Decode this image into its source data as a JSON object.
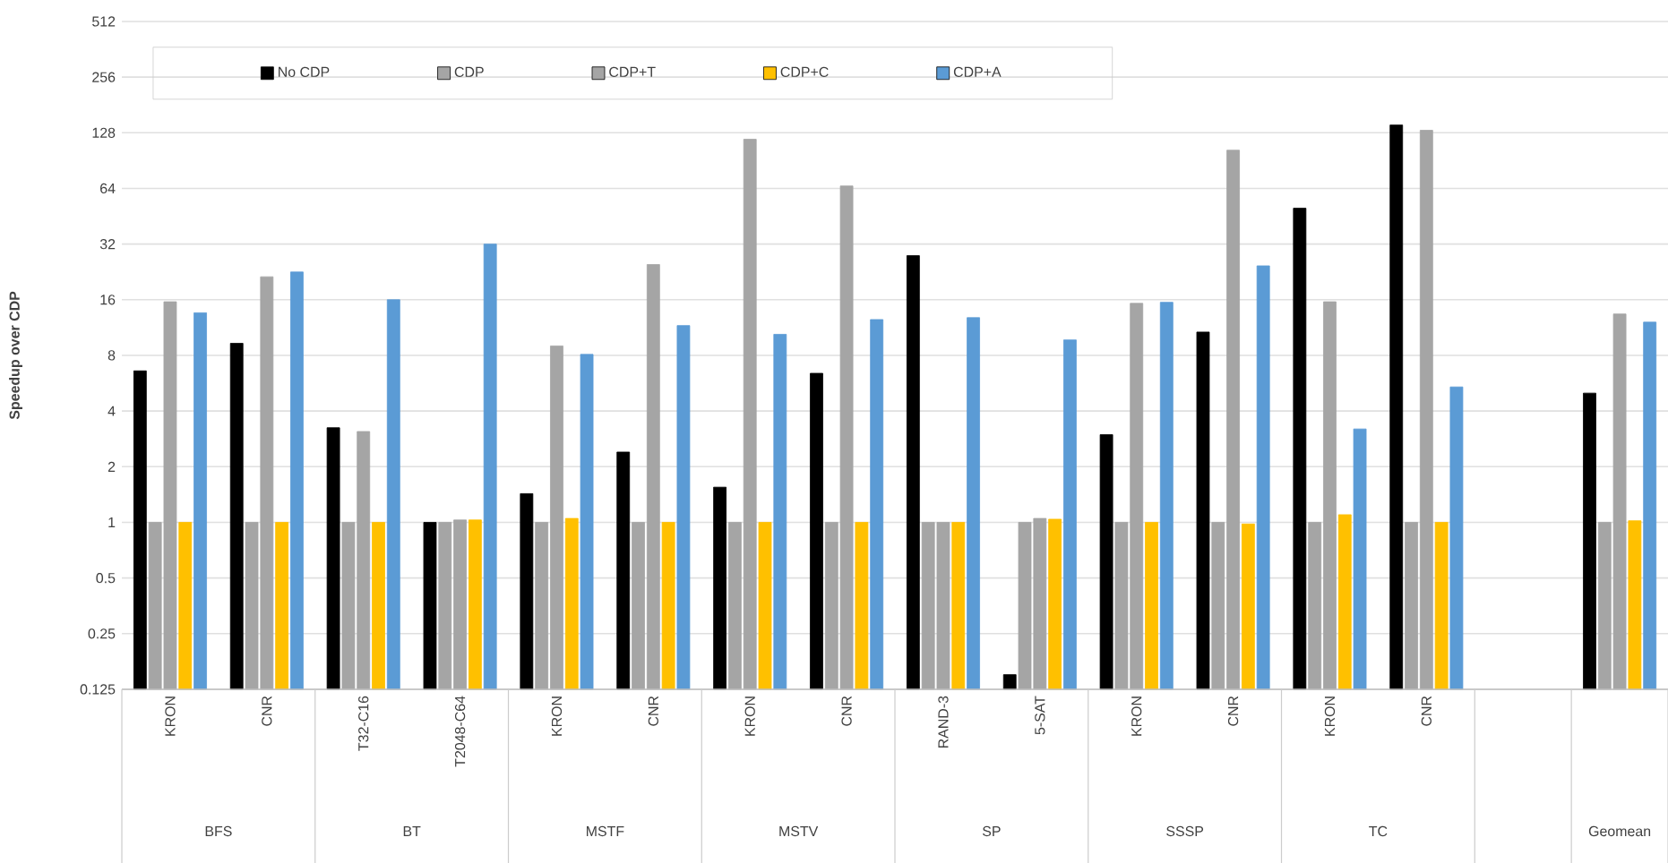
{
  "chart_data": {
    "type": "bar",
    "ylabel": "Speedup over CDP",
    "categories": [
      "KRON",
      "CNR",
      "T32-C16",
      "T2048-C64",
      "KRON",
      "CNR",
      "KRON",
      "CNR",
      "RAND-3",
      "5-SAT",
      "KRON",
      "CNR",
      "KRON",
      "CNR",
      null,
      null
    ],
    "series": [
      {
        "name": "No CDP",
        "color": "#000000",
        "values": [
          6.6,
          9.3,
          3.25,
          1.0,
          1.43,
          2.4,
          1.55,
          6.4,
          27.7,
          0.15,
          2.98,
          10.7,
          50,
          141,
          null,
          5.0
        ]
      },
      {
        "name": "CDP",
        "color": "#a5a5a5",
        "values": [
          1,
          1,
          1,
          1,
          1,
          1,
          1,
          1,
          1,
          1,
          1,
          1,
          1,
          1,
          null,
          1
        ]
      },
      {
        "name": "CDP+T",
        "color": "#a5a5a5",
        "values": [
          15.6,
          21.3,
          3.1,
          1.03,
          9.0,
          24.8,
          118,
          66,
          1,
          1.05,
          15.3,
          103,
          15.6,
          132,
          null,
          13.4
        ]
      },
      {
        "name": "CDP+C",
        "color": "#ffc000",
        "values": [
          1,
          1,
          1,
          1.03,
          1.05,
          1,
          1,
          1,
          1,
          1.04,
          1,
          0.98,
          1.1,
          1,
          null,
          1.02
        ]
      },
      {
        "name": "CDP+A",
        "color": "#5b9bd5",
        "values": [
          13.6,
          22.6,
          16,
          32,
          8.1,
          11.6,
          10.4,
          12.5,
          12.8,
          9.7,
          15.5,
          24.4,
          3.2,
          5.4,
          null,
          12.1
        ]
      }
    ],
    "annotations": [
      "BFS",
      "BT",
      "MSTF",
      "MSTV",
      "SP",
      "SSSP",
      "TC",
      "Geomean"
    ],
    "log": true,
    "ylim": [
      0.125,
      512
    ],
    "yticks": [
      0.125,
      0.25,
      0.5,
      1,
      2,
      4,
      8,
      16,
      32,
      64,
      128,
      256,
      512
    ],
    "grid": "y",
    "legend": "top"
  }
}
